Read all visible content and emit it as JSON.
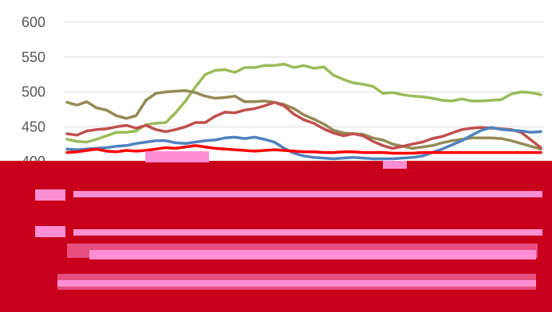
{
  "chart_data": {
    "type": "line",
    "title": "",
    "xlabel": "",
    "ylabel": "",
    "ylim": [
      400,
      600
    ],
    "yticks": [
      400,
      450,
      500,
      550,
      600
    ],
    "grid": "horizontal",
    "legend": "",
    "series": [
      {
        "color": "#9bbb59",
        "values": [
          432,
          429,
          428,
          432,
          437,
          442,
          442,
          444,
          453,
          455,
          456,
          470,
          487,
          507,
          525,
          531,
          532,
          528,
          535,
          535,
          538,
          538,
          540,
          535,
          538,
          534,
          536,
          524,
          518,
          513,
          511,
          508,
          498,
          499,
          496,
          494,
          493,
          491,
          488,
          487,
          490,
          487,
          487,
          488,
          489,
          497,
          500,
          499,
          496
        ]
      },
      {
        "color": "#948a54",
        "values": [
          485,
          481,
          486,
          477,
          474,
          466,
          462,
          466,
          488,
          498,
          500,
          501,
          502,
          499,
          494,
          491,
          492,
          494,
          486,
          486,
          487,
          485,
          482,
          476,
          467,
          461,
          454,
          445,
          441,
          440,
          439,
          434,
          431,
          425,
          422,
          419,
          421,
          423,
          427,
          430,
          432,
          434,
          434,
          434,
          433,
          430,
          426,
          422,
          418
        ]
      },
      {
        "color": "#c0504d",
        "values": [
          440,
          438,
          444,
          446,
          447,
          450,
          452,
          448,
          452,
          446,
          443,
          446,
          450,
          456,
          456,
          465,
          471,
          470,
          474,
          476,
          480,
          485,
          480,
          468,
          460,
          455,
          447,
          441,
          437,
          440,
          437,
          429,
          423,
          419,
          422,
          425,
          428,
          433,
          436,
          441,
          446,
          448,
          449,
          448,
          447,
          446,
          442,
          431,
          420
        ]
      },
      {
        "color": "#4f81bd",
        "values": [
          418,
          417,
          418,
          419,
          420,
          422,
          423,
          426,
          428,
          430,
          430,
          427,
          426,
          428,
          430,
          431,
          434,
          435,
          433,
          435,
          432,
          428,
          419,
          412,
          408,
          406,
          405,
          404,
          405,
          406,
          405,
          404,
          404,
          404,
          405,
          406,
          408,
          413,
          418,
          424,
          430,
          438,
          445,
          449,
          446,
          445,
          444,
          442,
          443
        ]
      },
      {
        "color": "#ff0000",
        "values": [
          413,
          414,
          416,
          418,
          415,
          414,
          416,
          415,
          416,
          418,
          420,
          419,
          421,
          423,
          421,
          419,
          418,
          417,
          416,
          415,
          416,
          417,
          416,
          415,
          414,
          414,
          413,
          413,
          414,
          414,
          413,
          413,
          413,
          412,
          412,
          412,
          413,
          413,
          413,
          413,
          413,
          413,
          413,
          413,
          413,
          413,
          413,
          413,
          413
        ]
      }
    ]
  }
}
